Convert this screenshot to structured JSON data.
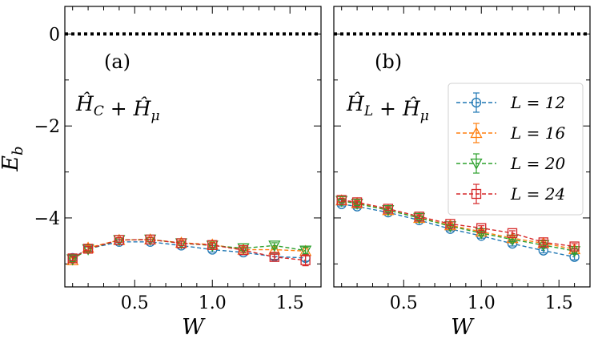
{
  "colors": {
    "L12": "#1f77b4",
    "L16": "#ff7f0e",
    "L20": "#2ca02c",
    "L24": "#d62728"
  },
  "chart_data": [
    {
      "type": "line",
      "panel_label": "(a)",
      "hamiltonian": "Ĥ_C + Ĥ_μ",
      "xlabel": "W",
      "ylabel": "E_b",
      "xlim": [
        0.05,
        1.7
      ],
      "ylim": [
        -5.5,
        0.6
      ],
      "xticks": [
        "0.5",
        "1.0",
        "1.5"
      ],
      "yticks": [
        "0",
        "−2",
        "−4"
      ],
      "reference_line": {
        "y": 0,
        "style": "dotted"
      },
      "x": [
        0.1,
        0.2,
        0.4,
        0.6,
        0.8,
        1.0,
        1.2,
        1.4,
        1.6
      ],
      "series": [
        {
          "name": "L = 12",
          "marker": "circle",
          "color": "#1f77b4",
          "values": [
            -4.87,
            -4.67,
            -4.52,
            -4.52,
            -4.6,
            -4.69,
            -4.75,
            -4.84,
            -4.87
          ],
          "errors": [
            0.05,
            0.05,
            0.05,
            0.05,
            0.05,
            0.05,
            0.05,
            0.06,
            0.07
          ]
        },
        {
          "name": "L = 16",
          "marker": "triangle-up",
          "color": "#ff7f0e",
          "values": [
            -4.92,
            -4.65,
            -4.48,
            -4.47,
            -4.54,
            -4.58,
            -4.69,
            -4.69,
            -4.72
          ],
          "errors": [
            0.05,
            0.05,
            0.05,
            0.05,
            0.05,
            0.05,
            0.05,
            0.06,
            0.07
          ]
        },
        {
          "name": "L = 20",
          "marker": "triangle-down",
          "color": "#2ca02c",
          "values": [
            -4.9,
            -4.68,
            -4.48,
            -4.47,
            -4.55,
            -4.6,
            -4.66,
            -4.6,
            -4.71
          ],
          "errors": [
            0.05,
            0.05,
            0.05,
            0.05,
            0.05,
            0.05,
            0.05,
            0.06,
            0.07
          ]
        },
        {
          "name": "L = 24",
          "marker": "square",
          "color": "#d62728",
          "values": [
            -4.88,
            -4.67,
            -4.48,
            -4.47,
            -4.55,
            -4.59,
            -4.7,
            -4.85,
            -4.92
          ],
          "errors": [
            0.05,
            0.05,
            0.05,
            0.05,
            0.05,
            0.05,
            0.05,
            0.06,
            0.12
          ]
        }
      ]
    },
    {
      "type": "line",
      "panel_label": "(b)",
      "hamiltonian": "Ĥ_L + Ĥ_μ",
      "xlabel": "W",
      "ylabel": "",
      "xlim": [
        0.05,
        1.7
      ],
      "ylim": [
        -5.5,
        0.6
      ],
      "xticks": [
        "0.5",
        "1.0",
        "1.5"
      ],
      "yticks": [],
      "reference_line": {
        "y": 0,
        "style": "dotted"
      },
      "legend": {
        "placement": "right"
      },
      "x": [
        0.1,
        0.2,
        0.4,
        0.6,
        0.8,
        1.0,
        1.2,
        1.4,
        1.6
      ],
      "series": [
        {
          "name": "L = 12",
          "marker": "circle",
          "color": "#1f77b4",
          "values": [
            -3.7,
            -3.75,
            -3.88,
            -4.05,
            -4.24,
            -4.39,
            -4.56,
            -4.71,
            -4.85
          ],
          "errors": [
            0.04,
            0.04,
            0.04,
            0.04,
            0.04,
            0.05,
            0.05,
            0.05,
            0.06
          ]
        },
        {
          "name": "L = 16",
          "marker": "triangle-up",
          "color": "#ff7f0e",
          "values": [
            -3.62,
            -3.68,
            -3.83,
            -4.0,
            -4.16,
            -4.3,
            -4.44,
            -4.55,
            -4.68
          ],
          "errors": [
            0.04,
            0.04,
            0.04,
            0.04,
            0.04,
            0.05,
            0.05,
            0.05,
            0.06
          ]
        },
        {
          "name": "L = 20",
          "marker": "triangle-down",
          "color": "#2ca02c",
          "values": [
            -3.63,
            -3.69,
            -3.83,
            -4.0,
            -4.18,
            -4.33,
            -4.47,
            -4.59,
            -4.72
          ],
          "errors": [
            0.04,
            0.04,
            0.04,
            0.04,
            0.04,
            0.05,
            0.05,
            0.05,
            0.06
          ]
        },
        {
          "name": "L = 24",
          "marker": "square",
          "color": "#d62728",
          "values": [
            -3.61,
            -3.66,
            -3.8,
            -3.97,
            -4.13,
            -4.22,
            -4.33,
            -4.53,
            -4.62
          ],
          "errors": [
            0.04,
            0.04,
            0.04,
            0.04,
            0.04,
            0.05,
            0.05,
            0.05,
            0.06
          ]
        }
      ]
    }
  ]
}
